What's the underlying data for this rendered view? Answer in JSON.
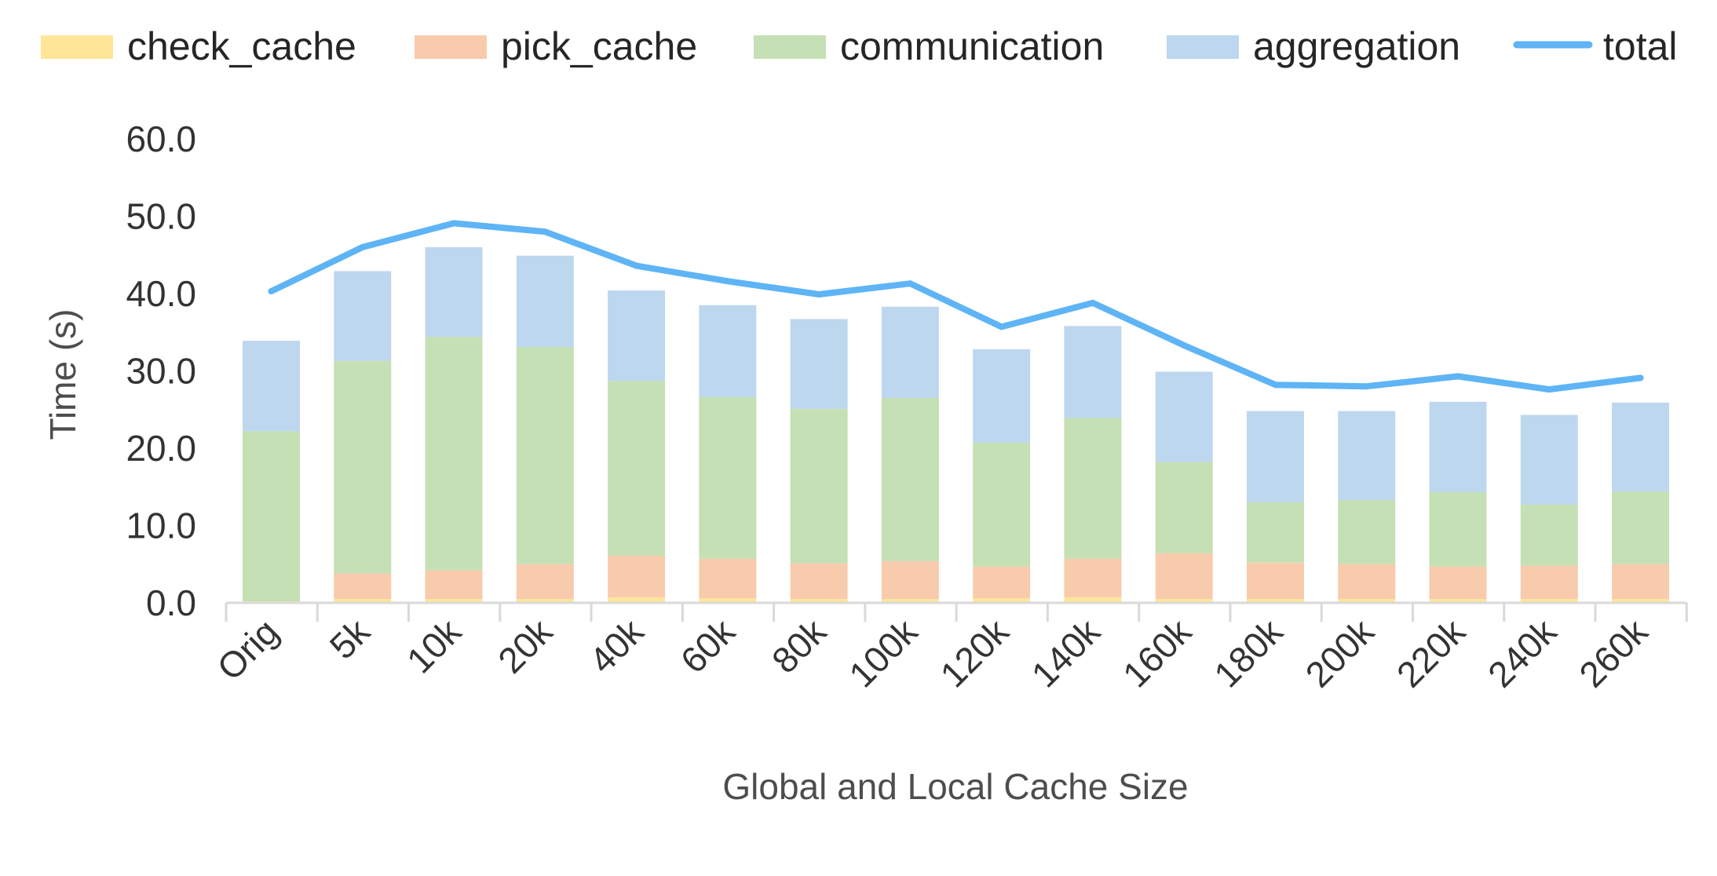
{
  "chart_data": {
    "type": "bar",
    "stacked": true,
    "categories": [
      "Orig",
      "5k",
      "10k",
      "20k",
      "40k",
      "60k",
      "80k",
      "100k",
      "120k",
      "140k",
      "160k",
      "180k",
      "200k",
      "220k",
      "240k",
      "260k"
    ],
    "series": [
      {
        "name": "check_cache",
        "color": "#ffe699",
        "values": [
          0.2,
          0.5,
          0.5,
          0.5,
          0.7,
          0.6,
          0.5,
          0.5,
          0.6,
          0.7,
          0.5,
          0.5,
          0.5,
          0.5,
          0.5,
          0.5
        ]
      },
      {
        "name": "pick_cache",
        "color": "#f8cbad",
        "values": [
          0.0,
          3.3,
          3.7,
          4.5,
          5.4,
          5.1,
          4.6,
          4.9,
          4.1,
          5.0,
          5.9,
          4.7,
          4.5,
          4.2,
          4.3,
          4.5
        ]
      },
      {
        "name": "communication",
        "color": "#c5e0b4",
        "values": [
          22.0,
          27.5,
          30.2,
          28.1,
          22.6,
          20.9,
          20.0,
          21.1,
          16.0,
          18.2,
          11.8,
          7.8,
          8.3,
          9.6,
          7.9,
          9.4
        ]
      },
      {
        "name": "aggregation",
        "color": "#bdd7ee",
        "values": [
          11.7,
          11.6,
          11.6,
          11.8,
          11.7,
          11.9,
          11.6,
          11.8,
          12.1,
          11.9,
          11.7,
          11.8,
          11.5,
          11.7,
          11.6,
          11.5
        ]
      }
    ],
    "line_series": {
      "name": "total",
      "color": "#5eb4f5",
      "values": [
        40.3,
        46.0,
        49.1,
        48.0,
        43.6,
        41.6,
        39.9,
        41.3,
        35.7,
        38.8,
        33.3,
        28.2,
        28.0,
        29.3,
        27.6,
        29.1
      ]
    },
    "ylim": [
      0,
      60
    ],
    "yticks": [
      "0.0",
      "10.0",
      "20.0",
      "30.0",
      "40.0",
      "50.0",
      "60.0"
    ],
    "ylabel": "Time (s)",
    "xlabel": "Global and Local Cache Size",
    "grid": false,
    "legend_position": "top"
  }
}
